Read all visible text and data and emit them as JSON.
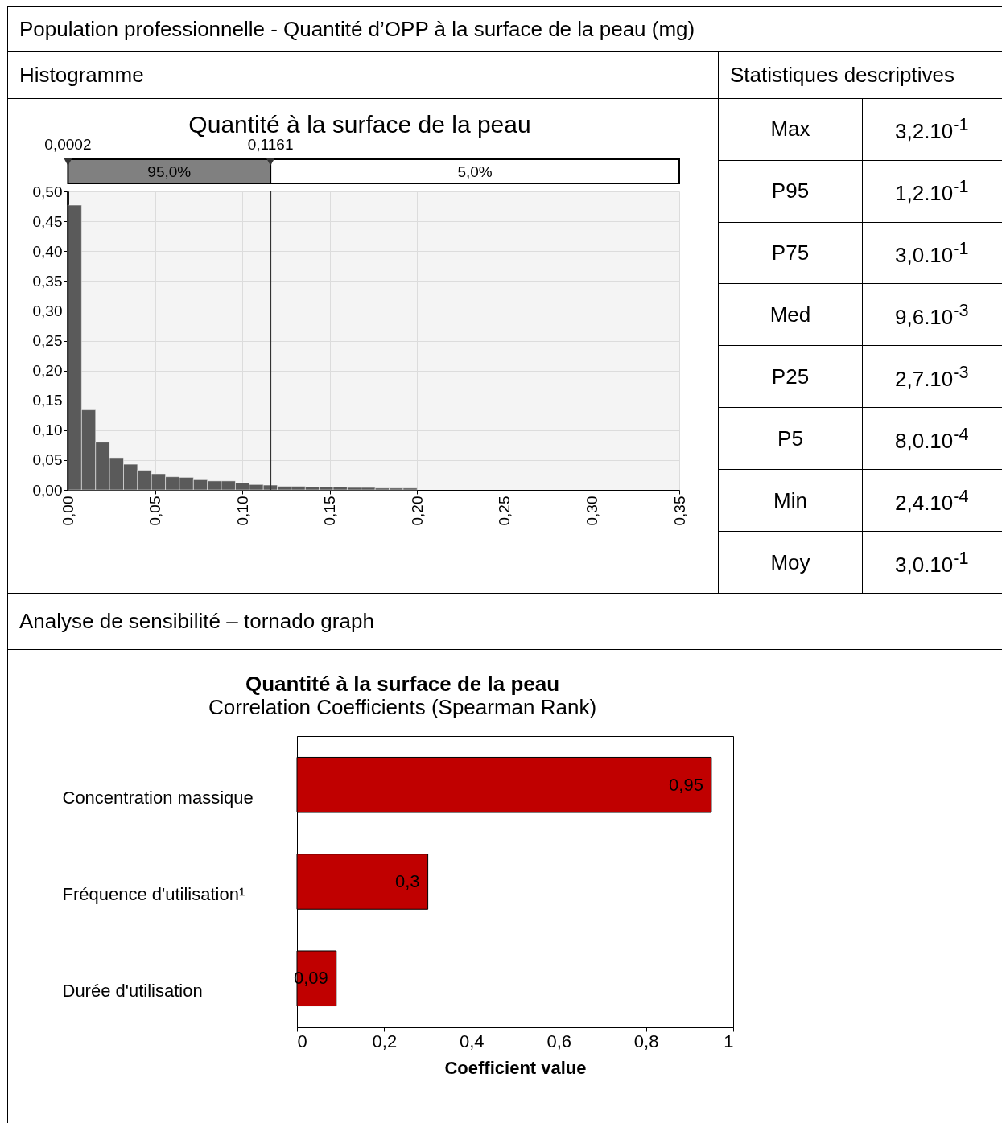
{
  "chart_data": [
    {
      "type": "histogram",
      "title": "Quantité à la surface de la peau",
      "annotations": [
        "Population professionnelle - Quantité d’OPP à la surface de la peau (mg)",
        "Histogramme",
        "95,0%",
        "5,0%"
      ],
      "bins": [
        0,
        0.008,
        0.016,
        0.024,
        0.032,
        0.04,
        0.048,
        0.056,
        0.064,
        0.072,
        0.08,
        0.088,
        0.096,
        0.104,
        0.112,
        0.12,
        0.128,
        0.136,
        0.144,
        0.152,
        0.16,
        0.168,
        0.176,
        0.184,
        0.192,
        0.2
      ],
      "values": [
        0.477,
        0.134,
        0.08,
        0.054,
        0.043,
        0.033,
        0.027,
        0.022,
        0.021,
        0.017,
        0.015,
        0.015,
        0.012,
        0.009,
        0.008,
        0.006,
        0.006,
        0.005,
        0.005,
        0.005,
        0.004,
        0.004,
        0.003,
        0.003,
        0.003
      ],
      "color": "#5a5a5a",
      "xlim": [
        0,
        0.35
      ],
      "ylim": [
        0,
        0.5
      ],
      "xticks": [
        {
          "value": 0,
          "label": "0,00"
        },
        {
          "value": 0.05,
          "label": "0,05"
        },
        {
          "value": 0.1,
          "label": "0,10"
        },
        {
          "value": 0.15,
          "label": "0,15"
        },
        {
          "value": 0.2,
          "label": "0,20"
        },
        {
          "value": 0.25,
          "label": "0,25"
        },
        {
          "value": 0.3,
          "label": "0,30"
        },
        {
          "value": 0.35,
          "label": "0,35"
        }
      ],
      "yticks": [
        {
          "value": 0,
          "label": "0,00"
        },
        {
          "value": 0.05,
          "label": "0,05"
        },
        {
          "value": 0.1,
          "label": "0,10"
        },
        {
          "value": 0.15,
          "label": "0,15"
        },
        {
          "value": 0.2,
          "label": "0,20"
        },
        {
          "value": 0.25,
          "label": "0,25"
        },
        {
          "value": 0.3,
          "label": "0,30"
        },
        {
          "value": 0.35,
          "label": "0,35"
        },
        {
          "value": 0.4,
          "label": "0,40"
        },
        {
          "value": 0.45,
          "label": "0,45"
        },
        {
          "value": 0.5,
          "label": "0,50"
        }
      ],
      "grid": true,
      "ref_lines": [
        {
          "axis": "x",
          "value": 0.0002,
          "label": "0,0002",
          "color": "#333333"
        },
        {
          "axis": "x",
          "value": 0.1161,
          "label": "0,1161",
          "color": "#333333"
        }
      ]
    },
    {
      "type": "other",
      "title": "Statistiques descriptives",
      "annotations": [
        "Max",
        "3,2.10$^{-1}$",
        "P95",
        "1,2.10$^{-1}$",
        "P75",
        "3,0.10$^{-1}$",
        "Med",
        "9,6.10$^{-3}$",
        "P25",
        "2,7.10$^{-3}$",
        "P5",
        "8,0.10$^{-4}$",
        "Min",
        "2,4.10$^{-4}$",
        "Moy",
        "3,0.10$^{-1}$"
      ]
    },
    {
      "type": "bar",
      "orientation": "horizontal",
      "title": "Quantité à la surface de la peau",
      "subtitle": "Correlation Coefficients (Spearman Rank)",
      "xlabel": "Coefficient value",
      "annotations": [
        "Analyse de sensibilité – tornado graph"
      ],
      "categories": [
        "Concentration massique",
        "Fréquence d'utilisation¹",
        "Durée d'utilisation"
      ],
      "values": [
        0.95,
        0.3,
        0.09
      ],
      "color": "#c00000",
      "value_labels": [
        "0,95",
        "0,3",
        "0,09"
      ],
      "xlim": [
        0,
        1
      ],
      "xticks": [
        0,
        {
          "value": 0.2,
          "label": "0,2"
        },
        {
          "value": 0.4,
          "label": "0,4"
        },
        {
          "value": 0.6,
          "label": "0,6"
        },
        {
          "value": 0.8,
          "label": "0,8"
        },
        1
      ]
    }
  ]
}
